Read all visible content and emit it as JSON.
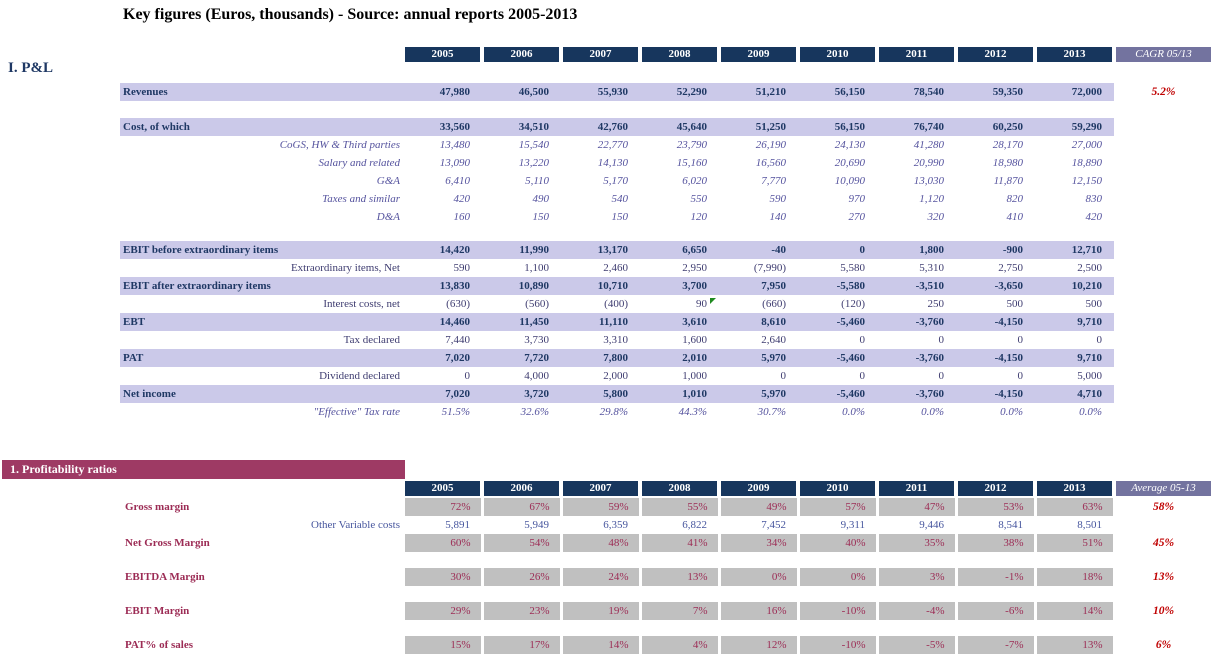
{
  "title": "Key figures (Euros, thousands) - Source: annual reports 2005-2013",
  "colors": {
    "header_bg": "#17365D",
    "header_text": "#FFFFFF",
    "band_bg": "#CBC9E9",
    "band_text": "#1F3864",
    "sub_italic_text": "#55539E",
    "sub_text": "#3E3C70",
    "cagr_header_bg": "#73739F",
    "cagr_value_text": "#C00000",
    "section_bar_bg": "#9E3A64",
    "ratio_cell_bg": "#C0C0C0",
    "ratio_text": "#9C2C55",
    "plain_value_text": "#47569E",
    "title_text": "#000000",
    "comment_marker": "#1F8A1F"
  },
  "pnl": {
    "section_label": "I. P&L",
    "years": [
      "2005",
      "2006",
      "2007",
      "2008",
      "2009",
      "2010",
      "2011",
      "2012",
      "2013"
    ],
    "cagr_header": "CAGR 05/13",
    "rows": [
      {
        "label": "Revenues",
        "type": "band",
        "gap_before": 21,
        "values": [
          "47,980",
          "46,500",
          "55,930",
          "52,290",
          "51,210",
          "56,150",
          "78,540",
          "59,350",
          "72,000"
        ],
        "cagr": "5.2%"
      },
      {
        "label": "Cost, of which",
        "type": "band",
        "gap_before": 17,
        "values": [
          "33,560",
          "34,510",
          "42,760",
          "45,640",
          "51,250",
          "56,150",
          "76,740",
          "60,250",
          "59,290"
        ]
      },
      {
        "label": "CoGS, HW & Third parties",
        "type": "italic",
        "values": [
          "13,480",
          "15,540",
          "22,770",
          "23,790",
          "26,190",
          "24,130",
          "41,280",
          "28,170",
          "27,000"
        ]
      },
      {
        "label": "Salary and related",
        "type": "italic",
        "values": [
          "13,090",
          "13,220",
          "14,130",
          "15,160",
          "16,560",
          "20,690",
          "20,990",
          "18,980",
          "18,890"
        ]
      },
      {
        "label": "G&A",
        "type": "italic",
        "values": [
          "6,410",
          "5,110",
          "5,170",
          "6,020",
          "7,770",
          "10,090",
          "13,030",
          "11,870",
          "12,150"
        ]
      },
      {
        "label": "Taxes and similar",
        "type": "italic",
        "values": [
          "420",
          "490",
          "540",
          "550",
          "590",
          "970",
          "1,120",
          "820",
          "830"
        ]
      },
      {
        "label": "D&A",
        "type": "italic",
        "values": [
          "160",
          "150",
          "150",
          "120",
          "140",
          "270",
          "320",
          "410",
          "420"
        ]
      },
      {
        "label": "EBIT before extraordinary items",
        "type": "band",
        "gap_before": 15,
        "values": [
          "14,420",
          "11,990",
          "13,170",
          "6,650",
          "-40",
          "0",
          "1,800",
          "-900",
          "12,710"
        ]
      },
      {
        "label": "Extraordinary items, Net",
        "type": "sub",
        "values": [
          "590",
          "1,100",
          "2,460",
          "2,950",
          "(7,990)",
          "5,580",
          "5,310",
          "2,750",
          "2,500"
        ]
      },
      {
        "label": "EBIT after extraordinary items",
        "type": "band",
        "values": [
          "13,830",
          "10,890",
          "10,710",
          "3,700",
          "7,950",
          "-5,580",
          "-3,510",
          "-3,650",
          "10,210"
        ]
      },
      {
        "label": "Interest costs, net",
        "type": "sub",
        "marker_col": 3,
        "values": [
          "(630)",
          "(560)",
          "(400)",
          "90",
          "(660)",
          "(120)",
          "250",
          "500",
          "500"
        ]
      },
      {
        "label": "EBT",
        "type": "band",
        "values": [
          "14,460",
          "11,450",
          "11,110",
          "3,610",
          "8,610",
          "-5,460",
          "-3,760",
          "-4,150",
          "9,710"
        ]
      },
      {
        "label": "Tax declared",
        "type": "sub",
        "values": [
          "7,440",
          "3,730",
          "3,310",
          "1,600",
          "2,640",
          "0",
          "0",
          "0",
          "0"
        ]
      },
      {
        "label": "PAT",
        "type": "band",
        "values": [
          "7,020",
          "7,720",
          "7,800",
          "2,010",
          "5,970",
          "-5,460",
          "-3,760",
          "-4,150",
          "9,710"
        ]
      },
      {
        "label": "Dividend declared",
        "type": "sub",
        "values": [
          "0",
          "4,000",
          "2,000",
          "1,000",
          "0",
          "0",
          "0",
          "0",
          "5,000"
        ]
      },
      {
        "label": "Net income",
        "type": "band",
        "values": [
          "7,020",
          "3,720",
          "5,800",
          "1,010",
          "5,970",
          "-5,460",
          "-3,760",
          "-4,150",
          "4,710"
        ]
      },
      {
        "label": "\"Effective\" Tax rate",
        "type": "italic",
        "values": [
          "51.5%",
          "32.6%",
          "29.8%",
          "44.3%",
          "30.7%",
          "0.0%",
          "0.0%",
          "0.0%",
          "0.0%"
        ]
      }
    ]
  },
  "ratios": {
    "section_label": "1. Profitability ratios",
    "years": [
      "2005",
      "2006",
      "2007",
      "2008",
      "2009",
      "2010",
      "2011",
      "2012",
      "2013"
    ],
    "avg_header": "Average 05-13",
    "rows": [
      {
        "label": "Gross margin",
        "type": "ratio",
        "gap_before": 2,
        "values": [
          "72%",
          "67%",
          "59%",
          "55%",
          "49%",
          "57%",
          "47%",
          "53%",
          "63%"
        ],
        "avg": "58%"
      },
      {
        "label": "Other Variable costs",
        "type": "plain",
        "values": [
          "5,891",
          "5,949",
          "6,359",
          "6,822",
          "7,452",
          "9,311",
          "9,446",
          "8,541",
          "8,501"
        ]
      },
      {
        "label": "Net Gross Margin",
        "type": "ratio",
        "values": [
          "60%",
          "54%",
          "48%",
          "41%",
          "34%",
          "40%",
          "35%",
          "38%",
          "51%"
        ],
        "avg": "45%"
      },
      {
        "label": "EBITDA Margin",
        "type": "ratio",
        "gap_before": 16,
        "values": [
          "30%",
          "26%",
          "24%",
          "13%",
          "0%",
          "0%",
          "3%",
          "-1%",
          "18%"
        ],
        "avg": "13%"
      },
      {
        "label": "EBIT Margin",
        "type": "ratio",
        "gap_before": 16,
        "values": [
          "29%",
          "23%",
          "19%",
          "7%",
          "16%",
          "-10%",
          "-4%",
          "-6%",
          "14%"
        ],
        "avg": "10%"
      },
      {
        "label": "PAT% of sales",
        "type": "ratio",
        "gap_before": 16,
        "values": [
          "15%",
          "17%",
          "14%",
          "4%",
          "12%",
          "-10%",
          "-5%",
          "-7%",
          "13%"
        ],
        "avg": "6%"
      }
    ]
  }
}
